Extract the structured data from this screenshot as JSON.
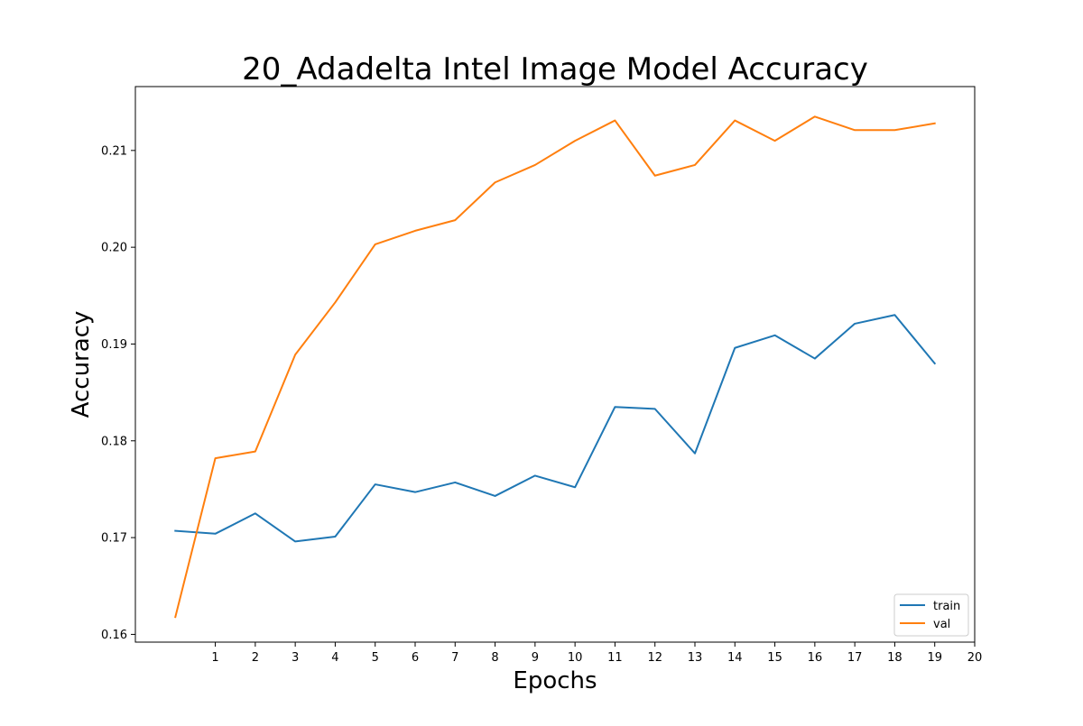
{
  "chart_data": {
    "type": "line",
    "title": "20_Adadelta Intel Image Model Accuracy",
    "xlabel": "Epochs",
    "ylabel": "Accuracy",
    "xlim": [
      -1.0,
      20
    ],
    "ylim": [
      0.1592,
      0.2166
    ],
    "x_ticks": [
      1,
      2,
      3,
      4,
      5,
      6,
      7,
      8,
      9,
      10,
      11,
      12,
      13,
      14,
      15,
      16,
      17,
      18,
      19,
      20
    ],
    "y_ticks": [
      0.16,
      0.17,
      0.18,
      0.19,
      0.2,
      0.21
    ],
    "y_tick_labels": [
      "0.16",
      "0.17",
      "0.18",
      "0.19",
      "0.20",
      "0.21"
    ],
    "x": [
      0,
      1,
      2,
      3,
      4,
      5,
      6,
      7,
      8,
      9,
      10,
      11,
      12,
      13,
      14,
      15,
      16,
      17,
      18,
      19
    ],
    "series": [
      {
        "name": "train",
        "color": "#1f77b4",
        "values": [
          0.1707,
          0.1704,
          0.1725,
          0.1696,
          0.1701,
          0.1755,
          0.1747,
          0.1757,
          0.1743,
          0.1764,
          0.1752,
          0.1835,
          0.1833,
          0.1787,
          0.1896,
          0.1909,
          0.1885,
          0.1921,
          0.193,
          0.188
        ]
      },
      {
        "name": "val",
        "color": "#ff7f0e",
        "values": [
          0.1618,
          0.1782,
          0.1789,
          0.1889,
          0.1943,
          0.2003,
          0.2017,
          0.2028,
          0.2067,
          0.2085,
          0.211,
          0.2131,
          0.2074,
          0.2085,
          0.2131,
          0.211,
          0.2135,
          0.2121,
          0.2121,
          0.2128
        ]
      }
    ],
    "grid": false,
    "legend_position": "lower-right"
  }
}
